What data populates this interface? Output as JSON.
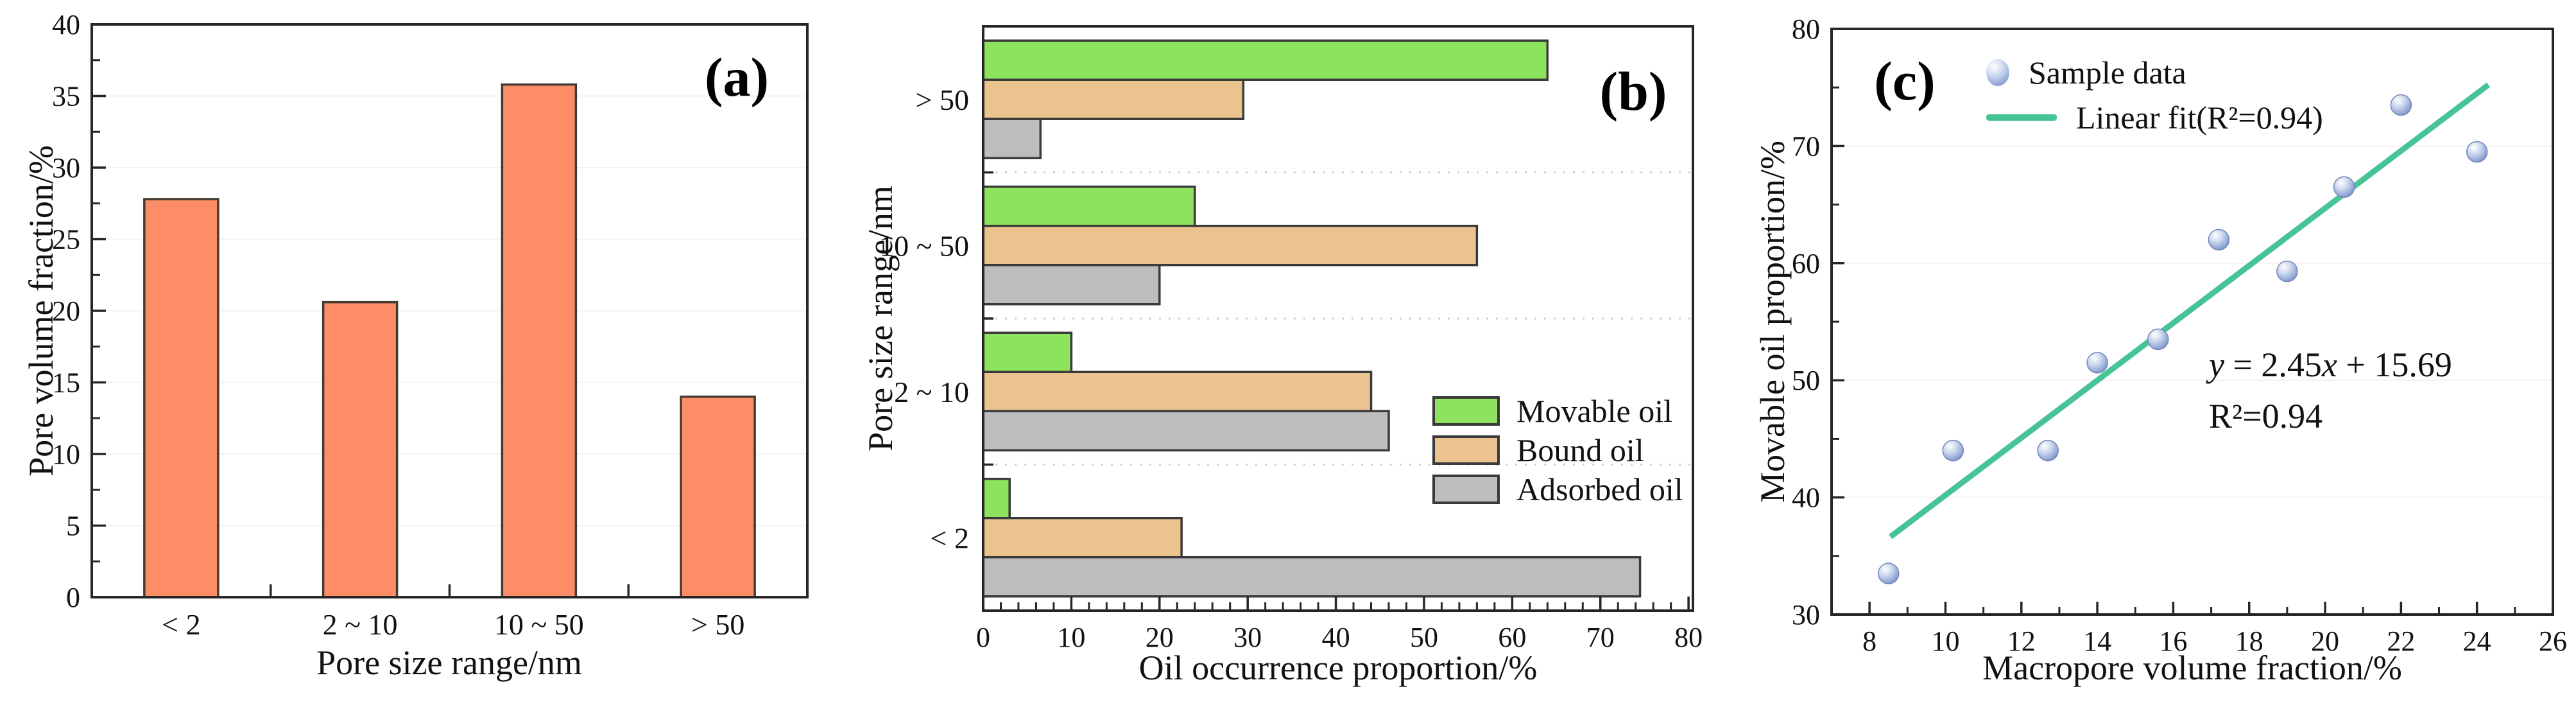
{
  "figure": {
    "background": "#ffffff",
    "frame_color": "#262626",
    "text_color": "#111111"
  },
  "chart_data": [
    {
      "type": "bar",
      "panel_tag": "(a)",
      "xlabel": "Pore size range/nm",
      "ylabel": "Pore volume fraction/%",
      "categories": [
        "< 2",
        "2 ~ 10",
        "10 ~ 50",
        "> 50"
      ],
      "values": [
        27.8,
        20.6,
        35.8,
        14.0
      ],
      "ylim": [
        0,
        40
      ],
      "ytick_labels": [
        "0",
        "5",
        "10",
        "15",
        "20",
        "25",
        "30",
        "35",
        "40"
      ],
      "ytick_step": 5,
      "yminor_step": 2.5,
      "grid": "faint horizontal",
      "bar_color": "#FC8D66",
      "bar_edge": "#433B32"
    },
    {
      "type": "bar",
      "orientation": "horizontal",
      "panel_tag": "(b)",
      "xlabel": "Oil occurrence proportion/%",
      "ylabel": "Pore size range/nm",
      "categories": [
        "> 50",
        "10 ~ 50",
        "2 ~ 10",
        "< 2"
      ],
      "series": [
        {
          "name": "Movable oil",
          "color": "#8DE35E",
          "values": [
            64,
            24,
            10,
            3
          ]
        },
        {
          "name": "Bound oil",
          "color": "#EAC38F",
          "values": [
            29.5,
            56,
            44,
            22.5
          ]
        },
        {
          "name": "Adsorbed oil",
          "color": "#BDBDBD",
          "values": [
            6.5,
            20,
            46,
            74.5
          ]
        }
      ],
      "xlim": [
        0,
        80.5
      ],
      "xtick_labels": [
        "0",
        "10",
        "20",
        "30",
        "40",
        "50",
        "60",
        "70",
        "80"
      ],
      "xtick_step": 10,
      "xminor_step": 2,
      "group_separator": "dotted",
      "bar_edge": "#3A3A3A",
      "legend_position": "middle-right"
    },
    {
      "type": "scatter",
      "panel_tag": "(c)",
      "xlabel": "Macropore volume fraction/%",
      "ylabel": "Movable oil proportion/%",
      "points": [
        [
          8.5,
          33.5
        ],
        [
          10.2,
          44.0
        ],
        [
          12.7,
          44.0
        ],
        [
          14.0,
          51.5
        ],
        [
          15.6,
          53.5
        ],
        [
          17.2,
          62.0
        ],
        [
          19.0,
          59.3
        ],
        [
          20.5,
          66.5
        ],
        [
          22.0,
          73.5
        ],
        [
          24.0,
          69.5
        ]
      ],
      "marker_color": "#93A8D5",
      "marker_edge": "#7186BA",
      "fit": {
        "slope": 2.45,
        "intercept": 15.69,
        "r_squared": "0.94",
        "x_range": [
          8.55,
          24.3
        ],
        "line_color": "#47C495"
      },
      "legend": [
        {
          "label": "Sample data",
          "marker": "sphere"
        },
        {
          "label": "Linear fit(R²=0.94)",
          "marker": "line"
        }
      ],
      "annotation": {
        "line1_parts": [
          {
            "t": "y",
            "italic": true
          },
          {
            "t": " = 2.45",
            "italic": false
          },
          {
            "t": "x",
            "italic": true
          },
          {
            "t": " + 15.69",
            "italic": false
          }
        ],
        "line2": "R²=0.94"
      },
      "xlim": [
        7,
        26
      ],
      "ylim": [
        30,
        80
      ],
      "xtick_labels": [
        "8",
        "10",
        "12",
        "14",
        "16",
        "18",
        "20",
        "22",
        "24",
        "26"
      ],
      "xtick_step": 2,
      "xminor_step": 1,
      "ytick_labels": [
        "30",
        "40",
        "50",
        "60",
        "70",
        "80"
      ],
      "ytick_step": 10,
      "yminor_step": 5
    }
  ]
}
